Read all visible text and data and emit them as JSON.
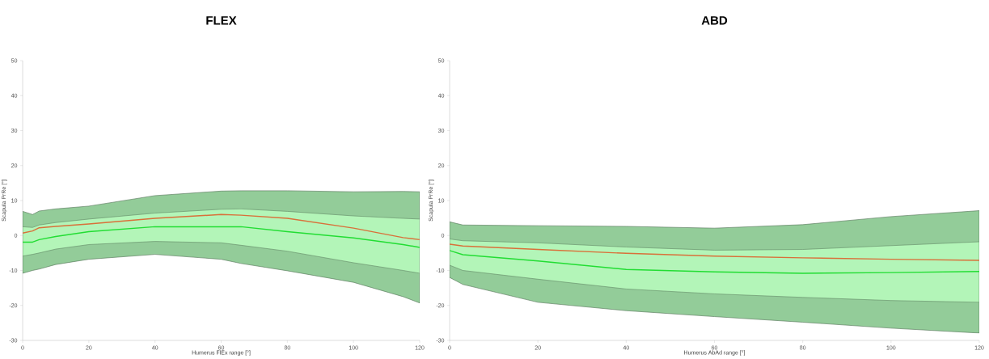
{
  "chart_data": [
    {
      "type": "line",
      "title": "FLEX",
      "xlabel": "Humerus FlEx range [°]",
      "ylabel": "Scapula PrRe [°]",
      "xlim": [
        0,
        120
      ],
      "ylim": [
        -30,
        50
      ],
      "xticks": [
        0,
        20,
        40,
        60,
        80,
        100,
        120
      ],
      "yticks": [
        -30,
        -20,
        -10,
        0,
        10,
        20,
        30,
        40,
        50
      ],
      "x": [
        0,
        3,
        5,
        10,
        20,
        40,
        60,
        66,
        80,
        100,
        115,
        120
      ],
      "series": [
        {
          "color": "#d9703a",
          "values": [
            0.7,
            1.3,
            2.2,
            2.6,
            3.3,
            4.9,
            6.0,
            5.8,
            4.9,
            2.1,
            -0.6,
            -1.2
          ],
          "upper": [
            6.9,
            6.0,
            7.0,
            7.6,
            8.4,
            11.4,
            12.7,
            12.8,
            12.8,
            12.5,
            12.6,
            12.5
          ],
          "lower": [
            -10.8,
            -10.0,
            -9.6,
            -8.3,
            -6.8,
            -5.4,
            -6.8,
            -8.0,
            -10.1,
            -13.4,
            -17.5,
            -19.3
          ]
        },
        {
          "color": "#22dd33",
          "values": [
            -1.9,
            -1.9,
            -1.2,
            -0.3,
            1.1,
            2.5,
            2.5,
            2.5,
            1.1,
            -0.7,
            -2.6,
            -3.4
          ],
          "upper": [
            2.5,
            2.3,
            3.0,
            3.7,
            4.7,
            6.4,
            7.5,
            7.6,
            6.9,
            5.6,
            4.9,
            4.7
          ],
          "lower": [
            -5.9,
            -5.4,
            -5.0,
            -3.9,
            -2.6,
            -1.7,
            -2.1,
            -2.8,
            -4.5,
            -7.8,
            -10.0,
            -10.8
          ]
        }
      ]
    },
    {
      "type": "line",
      "title": "ABD",
      "xlabel": "Humerus AbAd range [°]",
      "ylabel": "Scapula PrRe [°]",
      "xlim": [
        0,
        120
      ],
      "ylim": [
        -30,
        50
      ],
      "xticks": [
        0,
        20,
        40,
        60,
        80,
        100,
        120
      ],
      "yticks": [
        -30,
        -20,
        -10,
        0,
        10,
        20,
        30,
        40,
        50
      ],
      "x": [
        0,
        3,
        20,
        40,
        60,
        80,
        100,
        120
      ],
      "series": [
        {
          "color": "#d9703a",
          "values": [
            -2.5,
            -3.0,
            -4.0,
            -5.1,
            -5.9,
            -6.4,
            -6.8,
            -7.1
          ],
          "upper": [
            3.9,
            3.0,
            2.8,
            2.6,
            2.1,
            3.1,
            5.4,
            7.1
          ],
          "lower": [
            -12.0,
            -14.0,
            -19.1,
            -21.5,
            -23.2,
            -24.8,
            -26.5,
            -27.9
          ]
        },
        {
          "color": "#22dd33",
          "values": [
            -4.3,
            -5.5,
            -7.3,
            -9.7,
            -10.4,
            -10.8,
            -10.6,
            -10.3
          ],
          "upper": [
            -1.0,
            -1.5,
            -2.1,
            -3.3,
            -4.2,
            -4.0,
            -2.9,
            -1.8
          ],
          "lower": [
            -8.5,
            -10.0,
            -12.5,
            -15.3,
            -16.7,
            -17.7,
            -18.6,
            -19.1
          ]
        }
      ]
    }
  ]
}
